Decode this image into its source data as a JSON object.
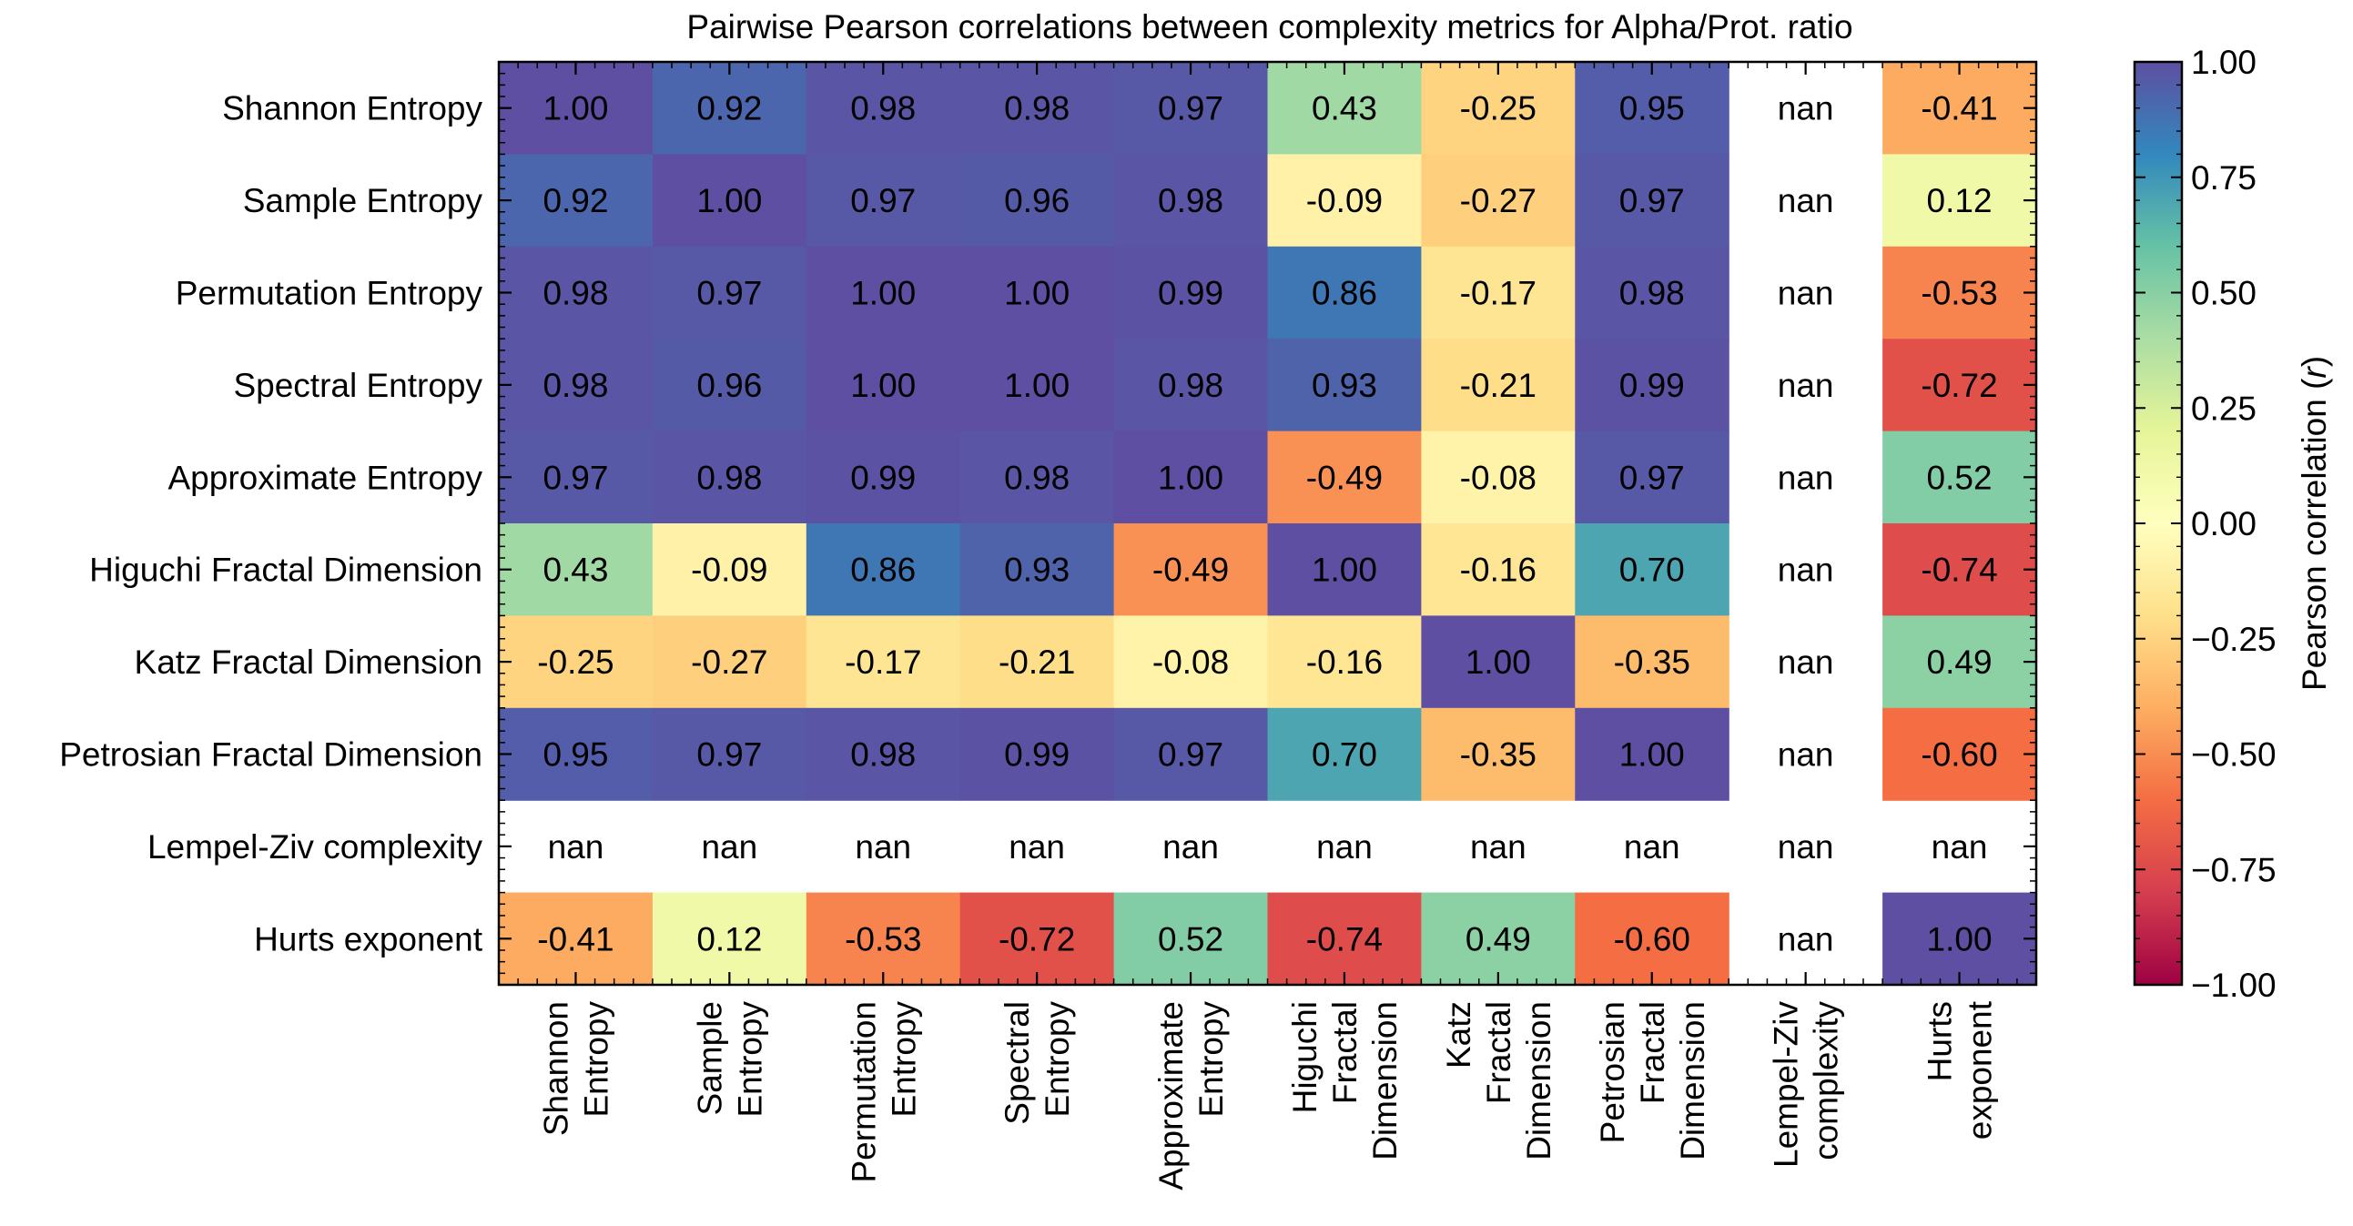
{
  "chart_data": {
    "type": "heatmap",
    "title": "Pairwise Pearson correlations between complexity metrics for Alpha/Prot. ratio",
    "row_labels": [
      "Shannon Entropy",
      "Sample Entropy",
      "Permutation Entropy",
      "Spectral Entropy",
      "Approximate Entropy",
      "Higuchi Fractal Dimension",
      "Katz Fractal Dimension",
      "Petrosian Fractal Dimension",
      "Lempel-Ziv complexity",
      "Hurts exponent"
    ],
    "col_labels": [
      [
        "Shannon",
        "Entropy"
      ],
      [
        "Sample",
        "Entropy"
      ],
      [
        "Permutation",
        "Entropy"
      ],
      [
        "Spectral",
        "Entropy"
      ],
      [
        "Approximate",
        "Entropy"
      ],
      [
        "Higuchi",
        "Fractal",
        "Dimension"
      ],
      [
        "Katz",
        "Fractal",
        "Dimension"
      ],
      [
        "Petrosian",
        "Fractal",
        "Dimension"
      ],
      [
        "Lempel-Ziv",
        "complexity"
      ],
      [
        "Hurts",
        "exponent"
      ]
    ],
    "values": [
      [
        1.0,
        0.92,
        0.98,
        0.98,
        0.97,
        0.43,
        -0.25,
        0.95,
        null,
        -0.41
      ],
      [
        0.92,
        1.0,
        0.97,
        0.96,
        0.98,
        -0.09,
        -0.27,
        0.97,
        null,
        0.12
      ],
      [
        0.98,
        0.97,
        1.0,
        1.0,
        0.99,
        0.86,
        -0.17,
        0.98,
        null,
        -0.53
      ],
      [
        0.98,
        0.96,
        1.0,
        1.0,
        0.98,
        0.93,
        -0.21,
        0.99,
        null,
        -0.72
      ],
      [
        0.97,
        0.98,
        0.99,
        0.98,
        1.0,
        -0.49,
        -0.08,
        0.97,
        null,
        0.52
      ],
      [
        0.43,
        -0.09,
        0.86,
        0.93,
        -0.49,
        1.0,
        -0.16,
        0.7,
        null,
        -0.74
      ],
      [
        -0.25,
        -0.27,
        -0.17,
        -0.21,
        -0.08,
        -0.16,
        1.0,
        -0.35,
        null,
        0.49
      ],
      [
        0.95,
        0.97,
        0.98,
        0.99,
        0.97,
        0.7,
        -0.35,
        1.0,
        null,
        -0.6
      ],
      [
        null,
        null,
        null,
        null,
        null,
        null,
        null,
        null,
        null,
        null
      ],
      [
        -0.41,
        0.12,
        -0.53,
        -0.72,
        0.52,
        -0.74,
        0.49,
        -0.6,
        null,
        1.0
      ]
    ],
    "missing_label": "nan",
    "colormap": "Spectral",
    "vmin": -1.0,
    "vmax": 1.0,
    "colorbar": {
      "label_prefix": "Pearson correlation (",
      "label_var": "r",
      "label_suffix": ")",
      "ticks": [
        1.0,
        0.75,
        0.5,
        0.25,
        0.0,
        -0.25,
        -0.5,
        -0.75,
        -1.0
      ],
      "tick_labels": [
        "1.00",
        "0.75",
        "0.50",
        "0.25",
        "0.00",
        "−0.25",
        "−0.50",
        "−0.75",
        "−1.00"
      ]
    }
  }
}
